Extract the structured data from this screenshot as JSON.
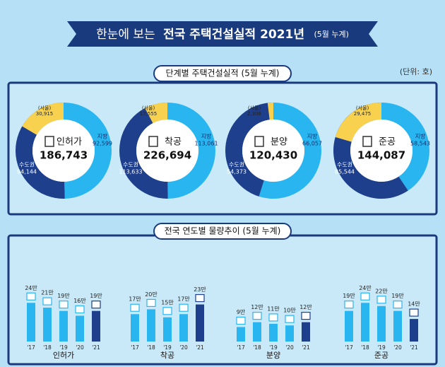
{
  "header": {
    "lead": "한눈에 보는",
    "title": "전국 주택건설실적 2021년",
    "note": "(5월 누계)"
  },
  "donut_section": {
    "title": "단계별 주택건설실적 (5월 누계)",
    "unit": "(단위: 호)"
  },
  "trend_section": {
    "title": "전국 연도별 물량추이 (5월 누계)"
  },
  "chart_data": [
    {
      "type": "pie",
      "title": "인허가",
      "total": 186743,
      "total_label": "186,743",
      "categories": [
        "지방",
        "수도권",
        "(서울)"
      ],
      "values": [
        92599,
        94144,
        30915
      ],
      "value_labels": [
        "92,599",
        "94,144",
        "30,915"
      ],
      "colors": [
        "#29b6f0",
        "#1e3f8c",
        "#f8d24f"
      ]
    },
    {
      "type": "pie",
      "title": "착공",
      "total": 226694,
      "total_label": "226,694",
      "categories": [
        "지방",
        "수도권",
        "(서울)"
      ],
      "values": [
        113061,
        113633,
        17555
      ],
      "value_labels": [
        "113,061",
        "113,633",
        "17,555"
      ],
      "colors": [
        "#29b6f0",
        "#1e3f8c",
        "#f8d24f"
      ]
    },
    {
      "type": "pie",
      "title": "분양",
      "total": 120430,
      "total_label": "120,430",
      "categories": [
        "지방",
        "수도권",
        "(서울)"
      ],
      "values": [
        66057,
        54373,
        2306
      ],
      "value_labels": [
        "66,057",
        "54,373",
        "2,306"
      ],
      "colors": [
        "#29b6f0",
        "#1e3f8c",
        "#f8d24f"
      ]
    },
    {
      "type": "pie",
      "title": "준공",
      "total": 144087,
      "total_label": "144,087",
      "categories": [
        "지방",
        "수도권",
        "(서울)"
      ],
      "values": [
        58543,
        85544,
        29475
      ],
      "value_labels": [
        "58,543",
        "85,544",
        "29,475"
      ],
      "colors": [
        "#29b6f0",
        "#1e3f8c",
        "#f8d24f"
      ]
    },
    {
      "type": "bar",
      "title": "인허가",
      "categories": [
        "'17",
        "'18",
        "'19",
        "'20",
        "'21"
      ],
      "values": [
        24,
        21,
        19,
        16,
        19
      ],
      "value_labels": [
        "24만",
        "21만",
        "19만",
        "16만",
        "19만"
      ],
      "colors": [
        "#29b6f0",
        "#29b6f0",
        "#29b6f0",
        "#29b6f0",
        "#1e3f8c"
      ],
      "ylim": [
        0,
        25
      ]
    },
    {
      "type": "bar",
      "title": "착공",
      "categories": [
        "'17",
        "'18",
        "'19",
        "'20",
        "'21"
      ],
      "values": [
        17,
        20,
        15,
        17,
        23
      ],
      "value_labels": [
        "17만",
        "20만",
        "15만",
        "17만",
        "23만"
      ],
      "colors": [
        "#29b6f0",
        "#29b6f0",
        "#29b6f0",
        "#29b6f0",
        "#1e3f8c"
      ],
      "ylim": [
        0,
        25
      ]
    },
    {
      "type": "bar",
      "title": "분양",
      "categories": [
        "'17",
        "'18",
        "'19",
        "'20",
        "'21"
      ],
      "values": [
        9,
        12,
        11,
        10,
        12
      ],
      "value_labels": [
        "9만",
        "12만",
        "11만",
        "10만",
        "12만"
      ],
      "colors": [
        "#29b6f0",
        "#29b6f0",
        "#29b6f0",
        "#29b6f0",
        "#1e3f8c"
      ],
      "ylim": [
        0,
        25
      ]
    },
    {
      "type": "bar",
      "title": "준공",
      "categories": [
        "'17",
        "'18",
        "'19",
        "'20",
        "'21"
      ],
      "values": [
        19,
        24,
        22,
        19,
        14
      ],
      "value_labels": [
        "19만",
        "24만",
        "22만",
        "19만",
        "14만"
      ],
      "colors": [
        "#29b6f0",
        "#29b6f0",
        "#29b6f0",
        "#29b6f0",
        "#1e3f8c"
      ],
      "ylim": [
        0,
        25
      ]
    }
  ]
}
